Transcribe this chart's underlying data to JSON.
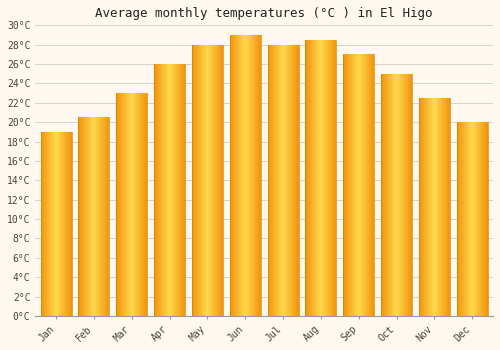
{
  "title": "Average monthly temperatures (°C ) in El Higo",
  "months": [
    "Jan",
    "Feb",
    "Mar",
    "Apr",
    "May",
    "Jun",
    "Jul",
    "Aug",
    "Sep",
    "Oct",
    "Nov",
    "Dec"
  ],
  "temperatures": [
    19,
    20.5,
    23,
    26,
    28,
    29,
    28,
    28.5,
    27,
    25,
    22.5,
    20
  ],
  "bar_color_center": "#FFD060",
  "bar_color_edge": "#F5A000",
  "ylim": [
    0,
    30
  ],
  "ytick_step": 2,
  "background_color": "#FFF8EE",
  "plot_bg_color": "#FFF8EE",
  "grid_color": "#cccccc",
  "title_fontsize": 9,
  "tick_fontsize": 7,
  "font_family": "monospace"
}
